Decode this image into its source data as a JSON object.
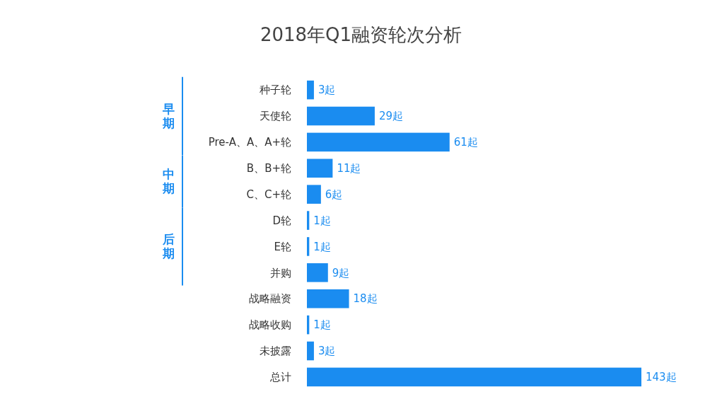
{
  "chart_data": {
    "type": "bar",
    "orientation": "horizontal",
    "title": "2018年Q1融资轮次分析",
    "categories": [
      "种子轮",
      "天使轮",
      "Pre-A、A、A+轮",
      "B、B+轮",
      "C、C+轮",
      "D轮",
      "E轮",
      "并购",
      "战略融资",
      "战略收购",
      "未披露",
      "总计"
    ],
    "values": [
      3,
      29,
      61,
      11,
      6,
      1,
      1,
      9,
      18,
      1,
      3,
      143
    ],
    "value_labels": [
      "3起",
      "29起",
      "61起",
      "11起",
      "6起",
      "1起",
      "1起",
      "9起",
      "18起",
      "1起",
      "3起",
      "143起"
    ],
    "color": "#1a8cf0",
    "annotations": [
      "早期",
      "中期",
      "后期"
    ]
  }
}
